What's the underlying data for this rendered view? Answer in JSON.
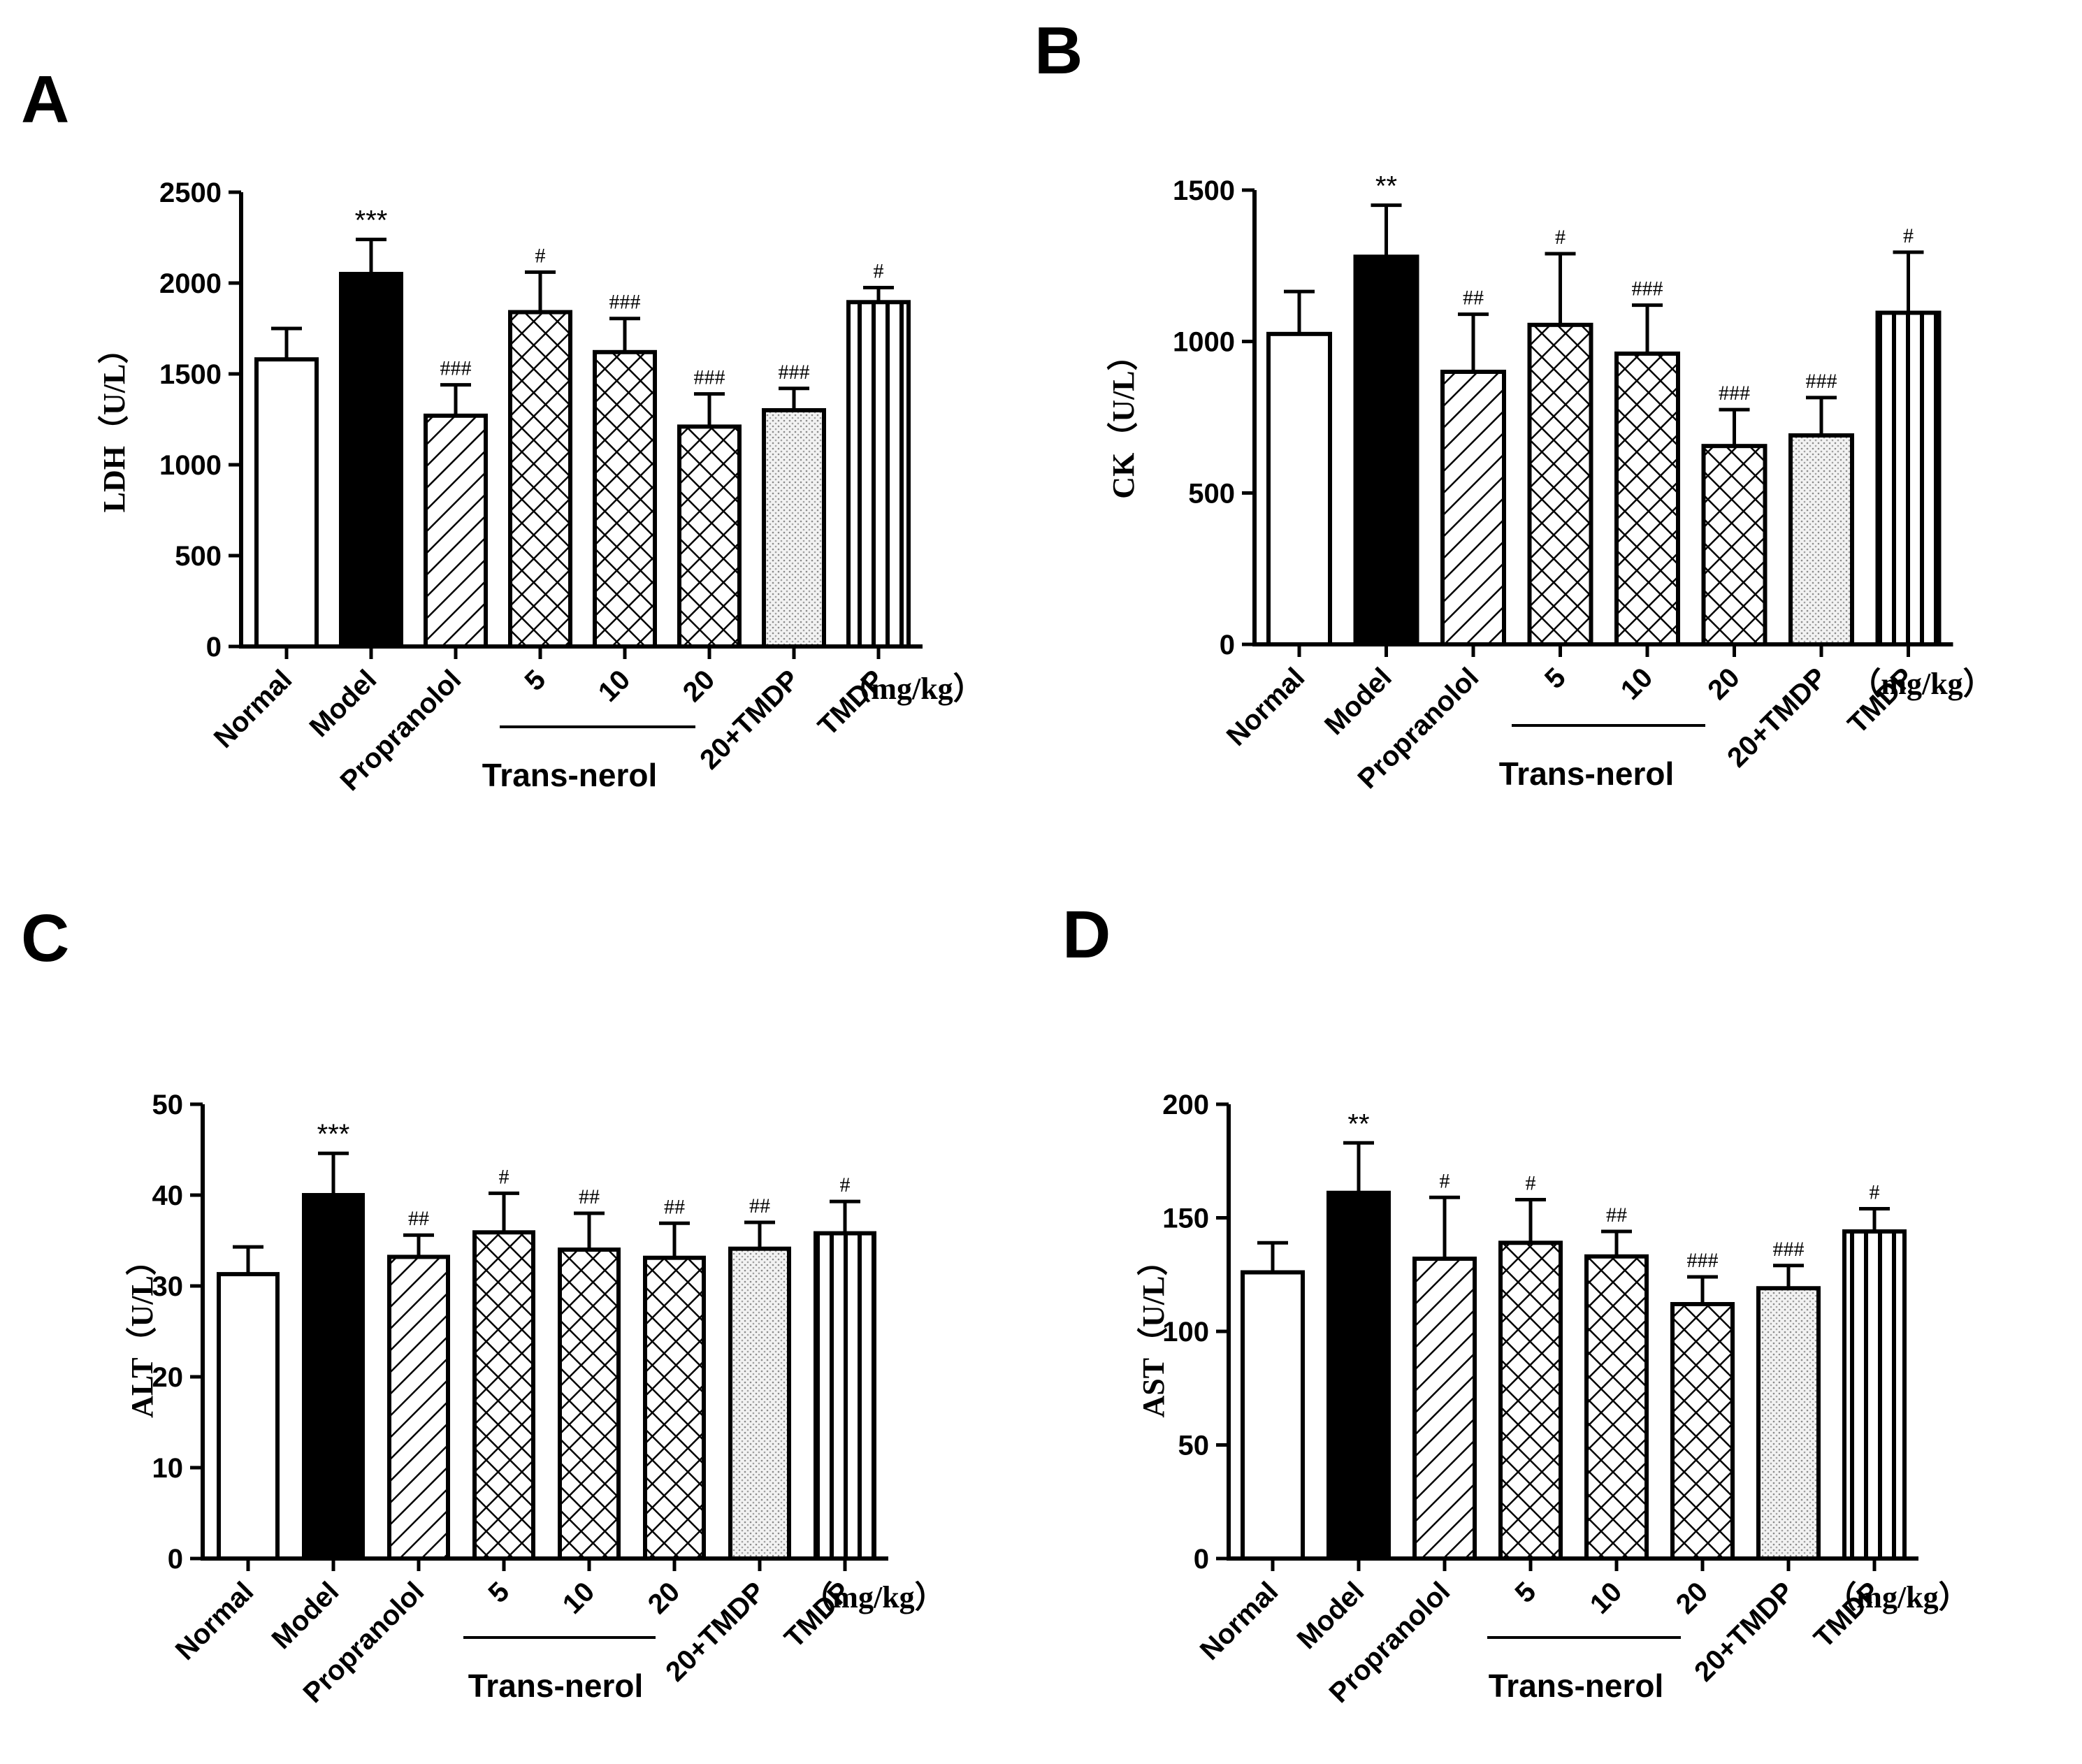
{
  "figure": {
    "categories": [
      "Normal",
      "Model",
      "Propranolol",
      "5",
      "10",
      "20",
      "20+TMDP",
      "TMDP"
    ],
    "unit": "（mg/kg）",
    "group_label": "Trans-nerol",
    "patterns": [
      "open",
      "solid",
      "diagonal",
      "crosshatch",
      "crosshatch",
      "crosshatch",
      "dotted",
      "vertical"
    ]
  },
  "chart_data": [
    {
      "panel": "A",
      "type": "bar",
      "ylabel": "LDH（U/L）",
      "ylim": [
        0,
        2500
      ],
      "yticks": [
        0,
        500,
        1000,
        1500,
        2000,
        2500
      ],
      "categories": [
        "Normal",
        "Model",
        "Propranolol",
        "5",
        "10",
        "20",
        "20+TMDP",
        "TMDP"
      ],
      "values": [
        1580,
        2050,
        1270,
        1840,
        1620,
        1210,
        1300,
        1895
      ],
      "errors": [
        170,
        190,
        170,
        220,
        185,
        180,
        120,
        80
      ],
      "significance": [
        "",
        "***",
        "###",
        "#",
        "###",
        "###",
        "###",
        "#"
      ]
    },
    {
      "panel": "B",
      "type": "bar",
      "ylabel": "CK（U/L）",
      "ylim": [
        0,
        1500
      ],
      "yticks": [
        0,
        500,
        1000,
        1500
      ],
      "categories": [
        "Normal",
        "Model",
        "Propranolol",
        "5",
        "10",
        "20",
        "20+TMDP",
        "TMDP"
      ],
      "values": [
        1025,
        1280,
        900,
        1055,
        960,
        655,
        690,
        1095
      ],
      "errors": [
        140,
        170,
        190,
        235,
        160,
        120,
        125,
        200
      ],
      "significance": [
        "",
        "**",
        "##",
        "#",
        "###",
        "###",
        "###",
        "#"
      ]
    },
    {
      "panel": "C",
      "type": "bar",
      "ylabel": "ALT（U/L）",
      "ylim": [
        0,
        50
      ],
      "yticks": [
        0,
        10,
        20,
        30,
        40,
        50
      ],
      "categories": [
        "Normal",
        "Model",
        "Propranolol",
        "5",
        "10",
        "20",
        "20+TMDP",
        "TMDP"
      ],
      "values": [
        31.3,
        40.0,
        33.2,
        35.9,
        34.0,
        33.1,
        34.1,
        35.8
      ],
      "errors": [
        3.0,
        4.6,
        2.4,
        4.3,
        4.0,
        3.8,
        2.9,
        3.5
      ],
      "significance": [
        "",
        "***",
        "##",
        "#",
        "##",
        "##",
        "##",
        "#"
      ]
    },
    {
      "panel": "D",
      "type": "bar",
      "ylabel": "AST（U/L）",
      "ylim": [
        0,
        200
      ],
      "yticks": [
        0,
        50,
        100,
        150,
        200
      ],
      "categories": [
        "Normal",
        "Model",
        "Propranolol",
        "5",
        "10",
        "20",
        "20+TMDP",
        "TMDP"
      ],
      "values": [
        126,
        161,
        132,
        139,
        133,
        112,
        119,
        144
      ],
      "errors": [
        13,
        22,
        27,
        19,
        11,
        12,
        10,
        10
      ],
      "significance": [
        "",
        "**",
        "#",
        "#",
        "##",
        "###",
        "###",
        "#"
      ]
    }
  ]
}
